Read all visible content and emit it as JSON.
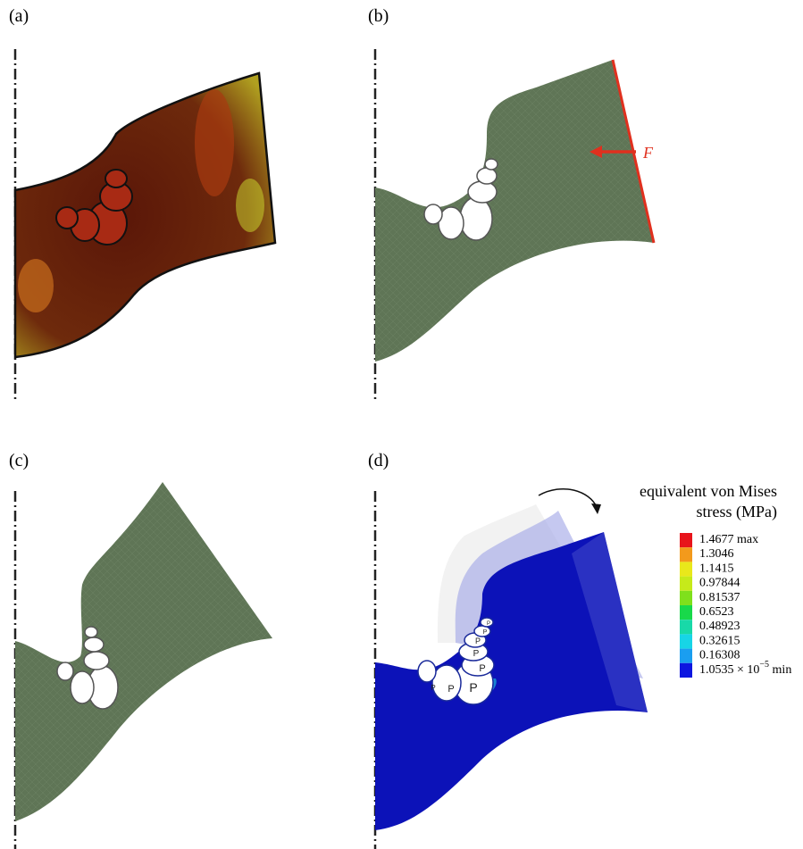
{
  "panels": [
    {
      "label": "(a)"
    },
    {
      "label": "(b)",
      "force_label": "F"
    },
    {
      "label": "(c)"
    },
    {
      "label": "(d)",
      "legend": {
        "title": [
          "equivalent von Mises",
          "stress (MPa)"
        ],
        "entries": [
          {
            "label": "1.4677 max",
            "color": "#e8141b"
          },
          {
            "label": "1.3046",
            "color": "#f39a1c"
          },
          {
            "label": "1.1415",
            "color": "#e9e81b"
          },
          {
            "label": "0.97844",
            "color": "#c6ea1a"
          },
          {
            "label": "0.81537",
            "color": "#7fe01c"
          },
          {
            "label": "0.6523",
            "color": "#18d94a"
          },
          {
            "label": "0.48923",
            "color": "#18d9a8"
          },
          {
            "label": "0.32615",
            "color": "#17d5e6"
          },
          {
            "label": "0.16308",
            "color": "#1a9ef0"
          },
          {
            "label": "1.0535 × 10",
            "exponent": "−5",
            "suffix": "min",
            "color": "#0d16e0"
          }
        ]
      },
      "region_labels": [
        "P",
        "P",
        "P",
        "P",
        "P",
        "P",
        "P",
        "P"
      ]
    }
  ]
}
